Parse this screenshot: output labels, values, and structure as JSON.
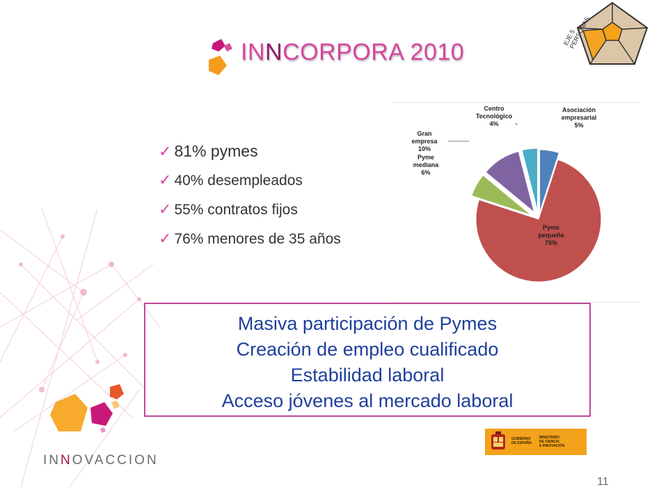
{
  "slide": {
    "title_prefix": "IN",
    "title_nn": "N",
    "title_rest": "CORPORA 2010",
    "pentagon_label_line1": "EJE 5",
    "pentagon_label_line2": "PERSONAS",
    "bullets": [
      {
        "check": "✓",
        "text": "81% pymes"
      },
      {
        "check": "✓",
        "text": "40% desempleados"
      },
      {
        "check": "✓",
        "text": "55% contratos fijos"
      },
      {
        "check": "✓",
        "text": "76% menores de 35 años"
      }
    ],
    "summary_lines": [
      "Masiva participación de Pymes",
      "Creación de empleo cualificado",
      "Estabilidad laboral",
      "Acceso jóvenes al mercado laboral"
    ],
    "brand_prefix": "IN",
    "brand_nn": "N",
    "brand_rest": "OVACCION",
    "gov_logo_text1": "GOBIERNO\nDE ESPAÑA",
    "gov_logo_text2": "MINISTERIO\nDE CIENCIA\nE INNOVACIÓN",
    "page_number": "11",
    "colors": {
      "title": "#d7469f",
      "summary_text": "#1f3f9a",
      "box_border": "#c0479a"
    }
  },
  "chart_data": {
    "type": "pie",
    "slices": [
      {
        "label": "Asociación empresarial",
        "value": 5,
        "color": "#4f81bd"
      },
      {
        "label": "Pyme pequeña",
        "value": 75,
        "color": "#c0504d"
      },
      {
        "label": "Pyme mediana",
        "value": 6,
        "color": "#9bbb59"
      },
      {
        "label": "Gran empresa",
        "value": 10,
        "color": "#8064a2"
      },
      {
        "label": "Centro Tecnológico",
        "value": 4,
        "color": "#4bacc6"
      }
    ],
    "value_suffix": "%"
  }
}
